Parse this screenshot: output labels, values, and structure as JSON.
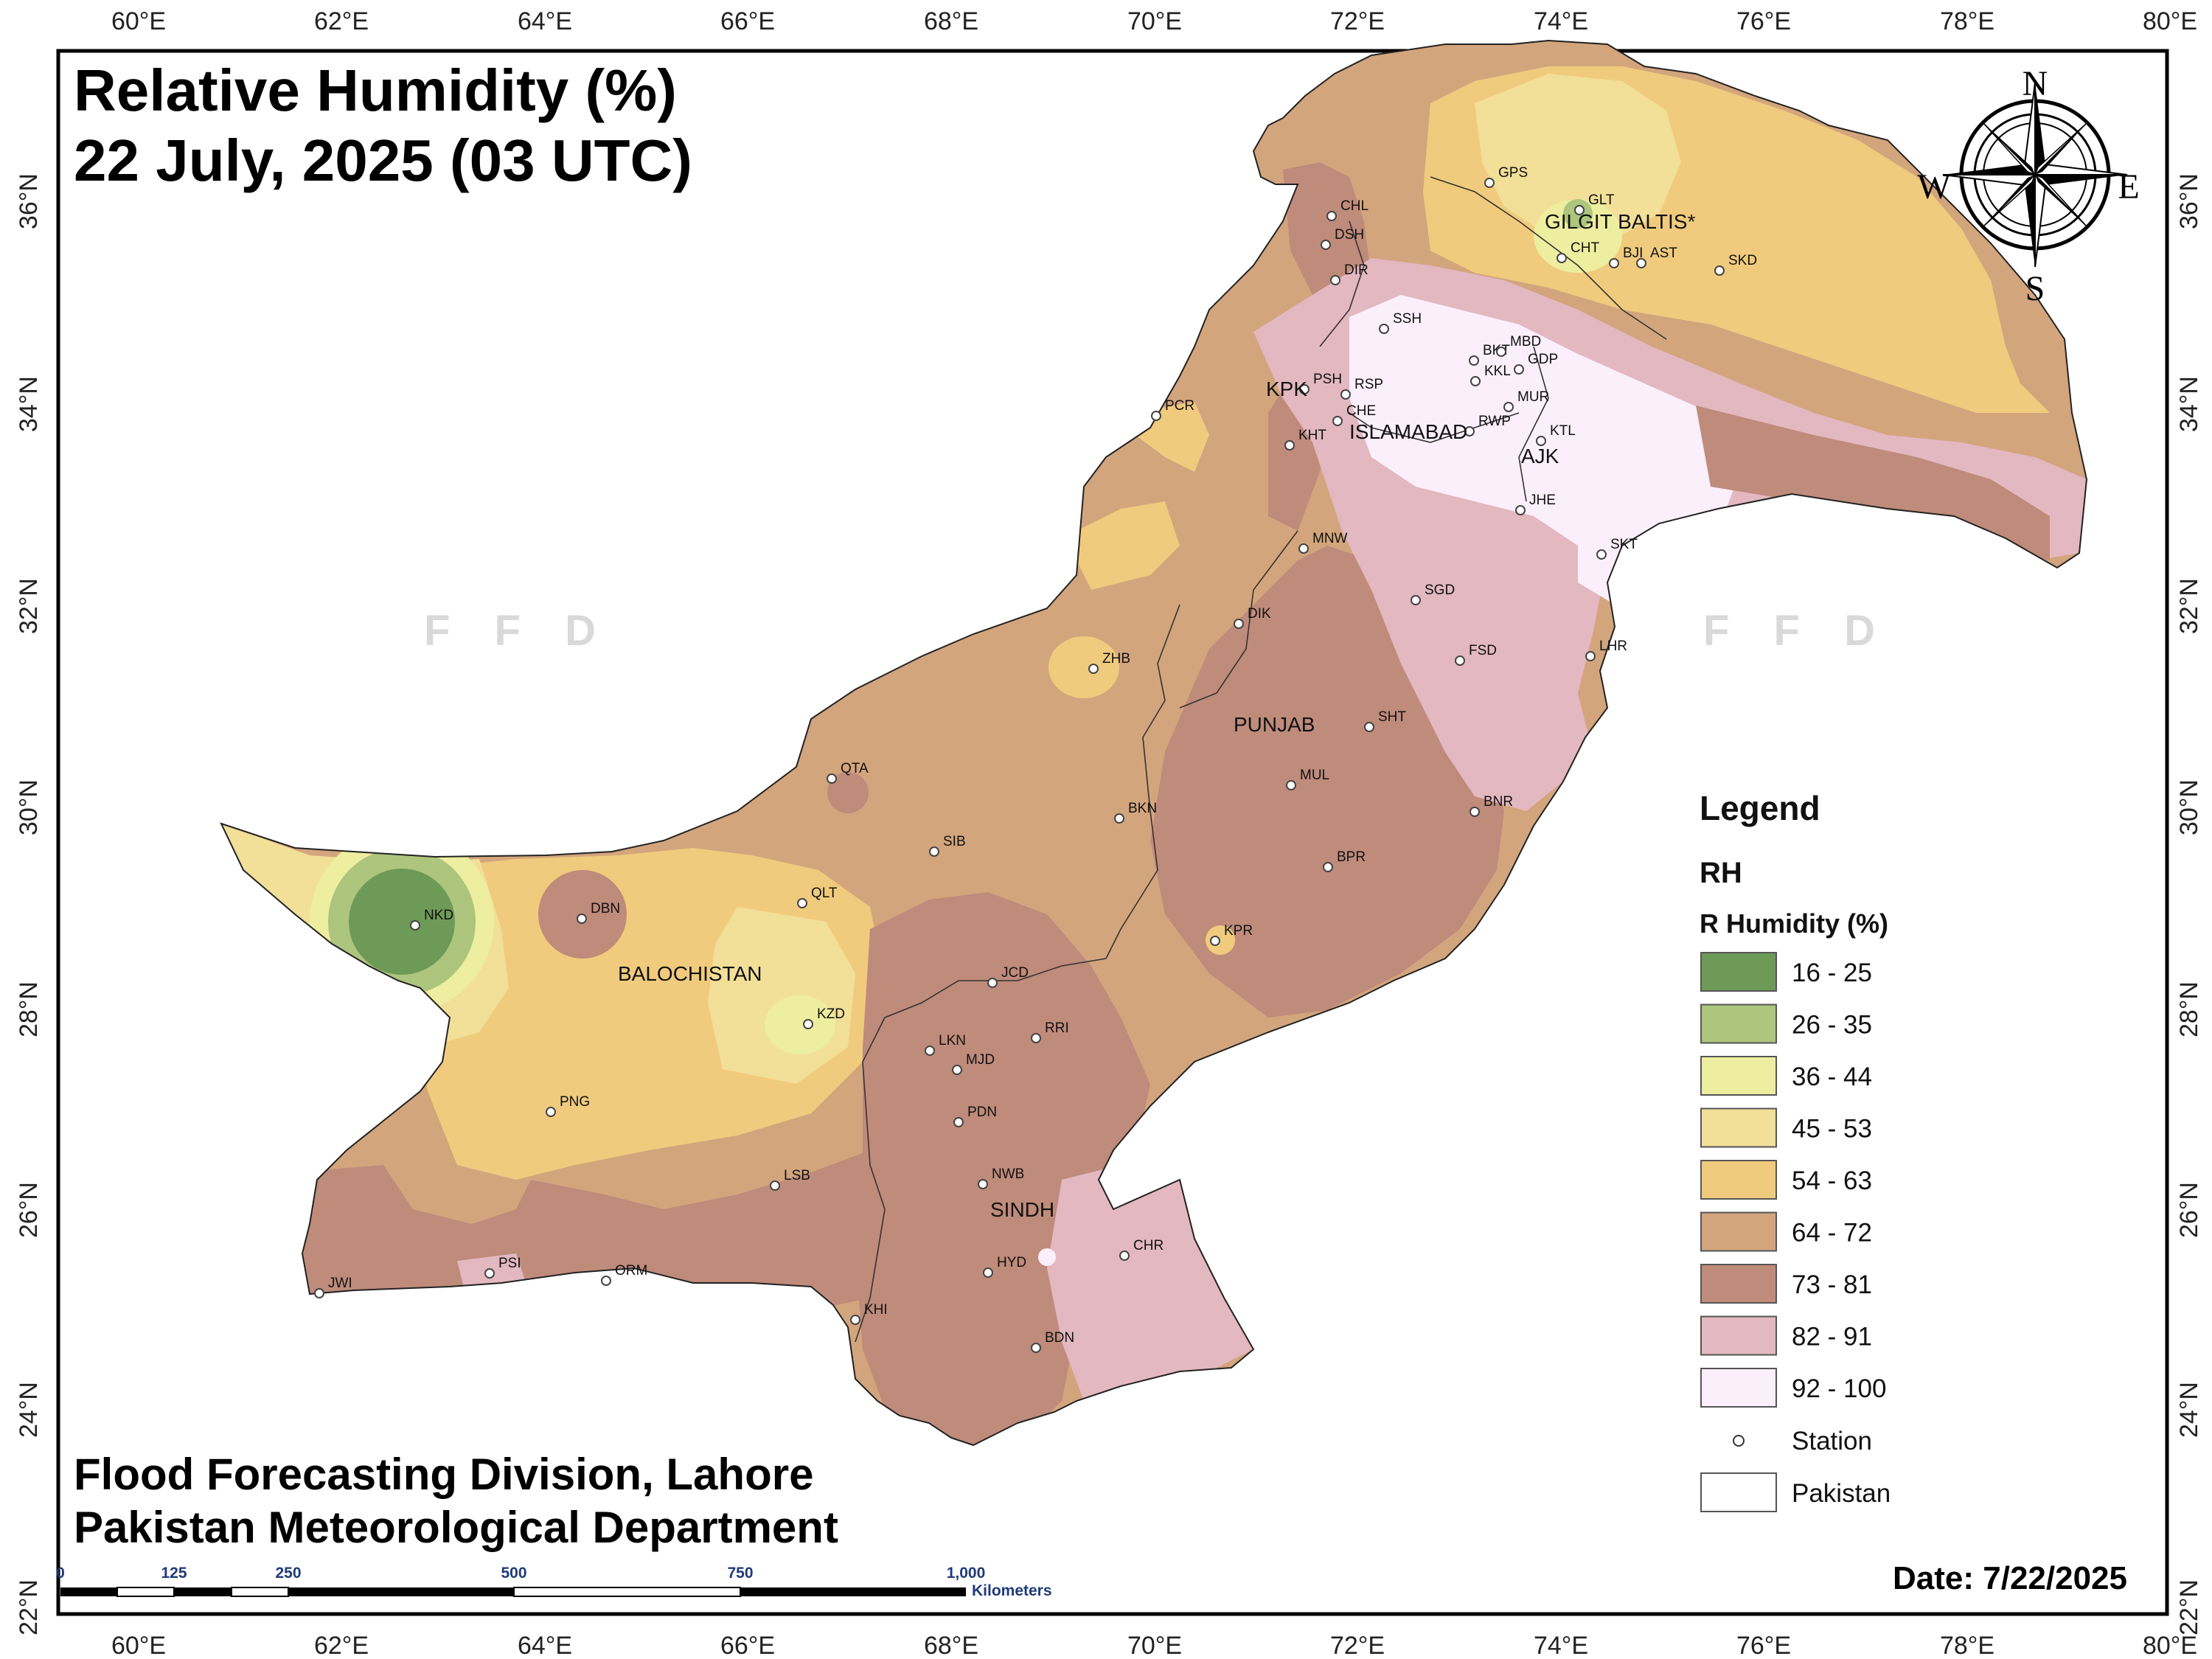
{
  "title": {
    "line1": "Relative Humidity (%)",
    "line2": "22 July, 2025 (03 UTC)"
  },
  "footer": {
    "line1": "Flood Forecasting Division, Lahore",
    "line2": "Pakistan Meteorological Department",
    "date": "Date: 7/22/2025"
  },
  "watermark": "F F D",
  "axes": {
    "lon_ticks": [
      "60°E",
      "62°E",
      "64°E",
      "66°E",
      "68°E",
      "70°E",
      "72°E",
      "74°E",
      "76°E",
      "78°E",
      "80°E"
    ],
    "lat_ticks": [
      "22°N",
      "24°N",
      "26°N",
      "28°N",
      "30°N",
      "32°N",
      "34°N",
      "36°N"
    ]
  },
  "compass": {
    "n": "N",
    "s": "S",
    "e": "E",
    "w": "W"
  },
  "regions": {
    "gilgit": "GILGIT BALTIS*",
    "kpk": "KPK",
    "islamabad": "ISLAMABAD",
    "ajk": "AJK",
    "punjab": "PUNJAB",
    "balochistan": "BALOCHISTAN",
    "sindh": "SINDH"
  },
  "stations": [
    "GPS",
    "GLT",
    "CHT",
    "BJI",
    "AST",
    "SKD",
    "CHL",
    "DSH",
    "DIR",
    "SSH",
    "BKT",
    "MBD",
    "KKL",
    "GDP",
    "MUR",
    "KTL",
    "RWP",
    "PSH",
    "RSP",
    "CHE",
    "KHT",
    "PCR",
    "JHE",
    "SKT",
    "MNW",
    "SGD",
    "DIK",
    "FSD",
    "LHR",
    "ZHB",
    "SHT",
    "QTA",
    "MUL",
    "BKN",
    "BNR",
    "SIB",
    "BPR",
    "QLT",
    "DBN",
    "NKD",
    "KPR",
    "JCD",
    "KZD",
    "RRI",
    "LKN",
    "MJD",
    "PNG",
    "PDN",
    "NWB",
    "LSB",
    "CHR",
    "HYD",
    "PSI",
    "ORM",
    "JWI",
    "KHI",
    "BDN"
  ],
  "legend": {
    "heading": "Legend",
    "layer": "RH",
    "field": "R Humidity (%)",
    "classes": [
      {
        "label": "16 - 25",
        "color": "#6e9a58"
      },
      {
        "label": "26 - 35",
        "color": "#adc57c"
      },
      {
        "label": "36 - 44",
        "color": "#eeeea0"
      },
      {
        "label": "45 - 53",
        "color": "#f2df98"
      },
      {
        "label": "54 - 63",
        "color": "#f1cb7d"
      },
      {
        "label": "64 - 72",
        "color": "#d3a57d"
      },
      {
        "label": "73 - 81",
        "color": "#bf8b7b"
      },
      {
        "label": "82 - 91",
        "color": "#e3b8c1"
      },
      {
        "label": "92 - 100",
        "color": "#fbeffb"
      }
    ],
    "station_label": "Station",
    "boundary_label": "Pakistan"
  },
  "scale_bar": {
    "ticks": [
      "0",
      "125",
      "250",
      "500",
      "750",
      "1,000"
    ],
    "unit": "Kilometers"
  }
}
